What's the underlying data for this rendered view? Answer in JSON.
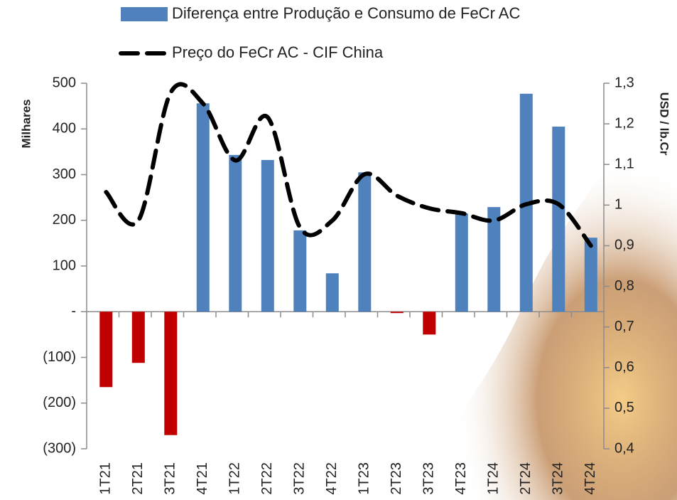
{
  "chart_data": {
    "type": "bar_line",
    "legend_position": "top",
    "categories": [
      "1T21",
      "2T21",
      "3T21",
      "4T21",
      "1T22",
      "2T22",
      "3T22",
      "4T22",
      "1T23",
      "2T23",
      "3T23",
      "4T23",
      "1T24",
      "2T24",
      "3T24",
      "4T24"
    ],
    "series": [
      {
        "name": "Diferença entre Produção e Consumo de FeCr AC",
        "type": "bar",
        "color": "#4f81bd",
        "negative_color": "#c00000",
        "values": [
          -165,
          -112,
          -270,
          456,
          343,
          332,
          178,
          84,
          305,
          -3,
          -50,
          215,
          229,
          477,
          405,
          162
        ]
      },
      {
        "name": "Preço do FeCr AC - CIF China",
        "type": "line",
        "axis": "y2",
        "color": "#000000",
        "dashed": true,
        "values": [
          1.032,
          0.962,
          1.277,
          1.25,
          1.11,
          1.216,
          0.945,
          0.962,
          1.076,
          1.023,
          0.992,
          0.98,
          0.962,
          1.002,
          1.002,
          0.9
        ]
      }
    ],
    "y_label": "Milhares",
    "y2_label": "USD / lb.Cr",
    "ylim": [
      -300,
      500
    ],
    "yticks": [
      {
        "value": -300,
        "label": "(300)"
      },
      {
        "value": -200,
        "label": "(200)"
      },
      {
        "value": -100,
        "label": "(100)"
      },
      {
        "value": 0,
        "label": "-"
      },
      100,
      200,
      300,
      400,
      500
    ],
    "y2lim": [
      0.4,
      1.3
    ],
    "y2ticks": [
      {
        "value": 0.4,
        "label": "0,4"
      },
      {
        "value": 0.5,
        "label": "0,5"
      },
      {
        "value": 0.6,
        "label": "0,6"
      },
      {
        "value": 0.7,
        "label": "0,7"
      },
      {
        "value": 0.8,
        "label": "0,8"
      },
      {
        "value": 0.9,
        "label": "0,9"
      },
      1,
      {
        "value": 1.1,
        "label": "1,1"
      },
      {
        "value": 1.2,
        "label": "1,2"
      },
      {
        "value": 1.3,
        "label": "1,3"
      }
    ],
    "grid": false
  }
}
